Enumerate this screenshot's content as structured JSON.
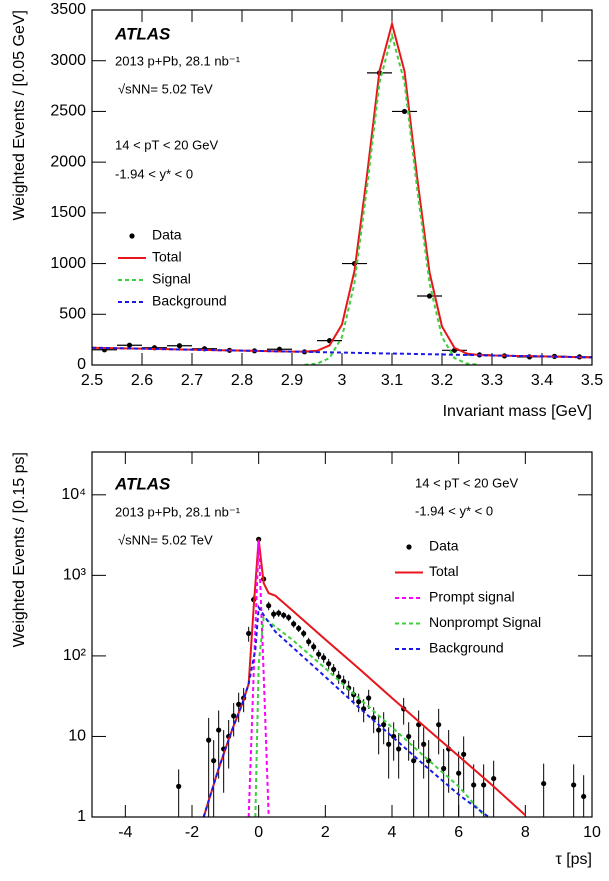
{
  "chart_data": [
    {
      "type": "line",
      "xlabel": "Invariant mass [GeV]",
      "ylabel": "Weighted Events / [0.05 GeV]",
      "annotations": [
        "ATLAS",
        "2013 p+Pb, 28.1 nb⁻¹",
        "√sNN= 5.02 TeV",
        "14 < pT < 20 GeV",
        "-1.94 < y* < 0"
      ],
      "xlim": [
        2.5,
        3.5
      ],
      "xticks": [
        2.5,
        2.6,
        2.7,
        2.8,
        2.9,
        3,
        3.1,
        3.2,
        3.3,
        3.4,
        3.5
      ],
      "ylim": [
        0,
        3500
      ],
      "yticks": [
        0,
        500,
        1000,
        1500,
        2000,
        2500,
        3000,
        3500
      ],
      "log_y": false,
      "legend_loc": "center left",
      "series": [
        {
          "name": "Data",
          "color": "#000000",
          "marker": true,
          "xerr": 0.025,
          "x": [
            2.525,
            2.575,
            2.625,
            2.675,
            2.725,
            2.775,
            2.825,
            2.875,
            2.925,
            2.975,
            3.025,
            3.075,
            3.125,
            3.175,
            3.225,
            3.275,
            3.325,
            3.375,
            3.425,
            3.475
          ],
          "values": [
            150,
            195,
            170,
            190,
            160,
            145,
            140,
            155,
            130,
            240,
            1000,
            2880,
            2500,
            680,
            145,
            100,
            90,
            80,
            85,
            80
          ]
        },
        {
          "name": "Total",
          "color": "#e8161b",
          "dash": false,
          "x": [
            2.5,
            2.525,
            2.55,
            2.575,
            2.6,
            2.625,
            2.65,
            2.675,
            2.7,
            2.725,
            2.75,
            2.775,
            2.8,
            2.825,
            2.85,
            2.875,
            2.9,
            2.925,
            2.95,
            2.975,
            3.0,
            3.025,
            3.05,
            3.075,
            3.1,
            3.125,
            3.15,
            3.175,
            3.2,
            3.225,
            3.25,
            3.275,
            3.3,
            3.325,
            3.35,
            3.375,
            3.4,
            3.425,
            3.45,
            3.475,
            3.5
          ],
          "values": [
            170,
            168,
            165,
            163,
            161,
            158,
            156,
            153,
            151,
            149,
            146,
            144,
            142,
            139,
            137,
            134,
            132,
            132,
            140,
            193,
            399,
            929,
            1870,
            2900,
            3363,
            2896,
            1860,
            915,
            380,
            169,
            112,
            98,
            94,
            92,
            89,
            87,
            85,
            82,
            80,
            77,
            75
          ]
        },
        {
          "name": "Signal",
          "color": "#3ecf3e",
          "dash": true,
          "x": [
            2.925,
            2.95,
            2.975,
            3.0,
            3.025,
            3.05,
            3.075,
            3.1,
            3.125,
            3.15,
            3.175,
            3.2,
            3.225,
            3.25,
            3.275
          ],
          "values": [
            2,
            13,
            68,
            276,
            809,
            1752,
            2785,
            3250,
            2785,
            1752,
            809,
            276,
            68,
            13,
            2
          ]
        },
        {
          "name": "Background",
          "color": "#1a1ae6",
          "dash": true,
          "x": [
            2.5,
            2.525,
            2.55,
            2.575,
            2.6,
            2.625,
            2.65,
            2.675,
            2.7,
            2.725,
            2.75,
            2.775,
            2.8,
            2.825,
            2.85,
            2.875,
            2.9,
            2.925,
            2.95,
            2.975,
            3.0,
            3.025,
            3.05,
            3.075,
            3.1,
            3.125,
            3.15,
            3.175,
            3.2,
            3.225,
            3.25,
            3.275,
            3.3,
            3.325,
            3.35,
            3.375,
            3.4,
            3.425,
            3.45,
            3.475,
            3.5
          ],
          "values": [
            170,
            168,
            165,
            163,
            161,
            158,
            156,
            153,
            151,
            149,
            146,
            144,
            142,
            139,
            137,
            134,
            132,
            130,
            127,
            125,
            123,
            120,
            118,
            115,
            113,
            111,
            108,
            106,
            104,
            101,
            99,
            96,
            94,
            92,
            89,
            87,
            85,
            82,
            80,
            77,
            75
          ]
        }
      ]
    },
    {
      "type": "line",
      "xlabel": "τ [ps]",
      "ylabel": "Weighted Events / [0.15 ps]",
      "annotations": [
        "ATLAS",
        "2013 p+Pb, 28.1 nb⁻¹",
        "√sNN= 5.02 TeV",
        "14 < pT < 20 GeV",
        "-1.94 < y* < 0"
      ],
      "xlim": [
        -5,
        10
      ],
      "xticks": [
        -4,
        -2,
        0,
        2,
        4,
        6,
        8,
        10
      ],
      "ylim": [
        1,
        34000
      ],
      "yticks": [
        1,
        10,
        {
          "value": 100,
          "label": "10²"
        },
        {
          "value": 1000,
          "label": "10³"
        },
        {
          "value": 10000,
          "label": "10⁴"
        }
      ],
      "log_y": true,
      "legend_loc": "upper right",
      "series": [
        {
          "name": "Data",
          "color": "#000000",
          "marker": true,
          "x": [
            -2.4,
            -1.5,
            -1.35,
            -1.2,
            -1.05,
            -0.9,
            -0.75,
            -0.6,
            -0.45,
            -0.3,
            -0.15,
            0,
            0.15,
            0.3,
            0.45,
            0.6,
            0.75,
            0.9,
            1.05,
            1.2,
            1.35,
            1.5,
            1.65,
            1.8,
            1.95,
            2.1,
            2.25,
            2.4,
            2.55,
            2.7,
            2.85,
            3.0,
            3.15,
            3.3,
            3.45,
            3.6,
            3.75,
            3.9,
            4.05,
            4.2,
            4.35,
            4.5,
            4.65,
            4.8,
            4.95,
            5.1,
            5.4,
            5.55,
            5.7,
            6.0,
            6.15,
            6.45,
            6.75,
            7.05,
            8.55,
            9.45,
            9.75
          ],
          "values": [
            2.4,
            9,
            5,
            12,
            7,
            10,
            18,
            25,
            30,
            190,
            500,
            2800,
            900,
            420,
            330,
            340,
            320,
            300,
            250,
            220,
            190,
            150,
            130,
            105,
            95,
            80,
            68,
            55,
            48,
            40,
            33,
            27,
            22,
            30,
            17,
            12,
            14,
            8,
            10,
            7,
            22,
            10,
            5,
            14,
            8,
            5,
            14,
            4,
            7,
            3.5,
            6,
            2.5,
            2.5,
            3,
            2.6,
            2.5,
            1.8
          ],
          "yerr": [
            1.5,
            8,
            4,
            9,
            5,
            6,
            8,
            10,
            10,
            40,
            60,
            150,
            80,
            50,
            40,
            35,
            30,
            30,
            25,
            22,
            20,
            18,
            16,
            14,
            13,
            12,
            11,
            10,
            9,
            9,
            8,
            7,
            7,
            8,
            6,
            6,
            6,
            5,
            5,
            4,
            8,
            5,
            4,
            7,
            5,
            4,
            8,
            3,
            5,
            3,
            4,
            2,
            2,
            2,
            2,
            2,
            1.5
          ]
        },
        {
          "name": "Total",
          "color": "#e8161b",
          "dash": false,
          "x": [
            -1.65,
            -1.2,
            -0.8,
            -0.5,
            -0.3,
            -0.15,
            0,
            0.15,
            0.3,
            0.5,
            1,
            2,
            3,
            4,
            5,
            6,
            7,
            8
          ],
          "values": [
            1,
            4,
            12,
            25,
            45,
            400,
            2800,
            800,
            600,
            560,
            370,
            160,
            70,
            30,
            13,
            5.7,
            2.5,
            1.05
          ]
        },
        {
          "name": "Prompt signal",
          "color": "#ff00ff",
          "dash": true,
          "x": [
            -0.3,
            -0.15,
            0,
            0.15,
            0.3
          ],
          "values": [
            1,
            60,
            2700,
            60,
            1
          ]
        },
        {
          "name": "Nonprompt Signal",
          "color": "#3ecf3e",
          "dash": true,
          "x": [
            -0.1,
            0,
            0.15,
            0.5,
            1,
            2,
            3,
            4,
            5,
            6,
            6.8
          ],
          "values": [
            1,
            80,
            300,
            230,
            160,
            70,
            30,
            13,
            5.5,
            2.4,
            1
          ]
        },
        {
          "name": "Background",
          "color": "#1a1ae6",
          "dash": true,
          "x": [
            -1.65,
            -1.2,
            -0.8,
            -0.5,
            -0.3,
            -0.1,
            0,
            0.2,
            0.5,
            1,
            2,
            3,
            4,
            5,
            6,
            6.9
          ],
          "values": [
            1,
            4,
            12,
            25,
            45,
            120,
            400,
            300,
            200,
            130,
            55,
            23,
            10,
            4.3,
            1.9,
            1
          ]
        }
      ]
    }
  ]
}
